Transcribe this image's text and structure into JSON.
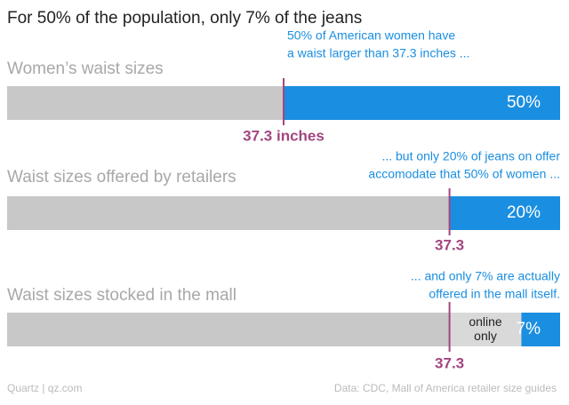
{
  "chart_data": {
    "type": "stacked-hbar",
    "title": "For 50% of the population, only 7% of the jeans",
    "xlim": [
      0,
      100
    ],
    "bars": [
      {
        "label": "Women’s waist sizes",
        "values": [
          50,
          50
        ],
        "colors": [
          "#c8c8c8",
          "#1a8ee0"
        ],
        "value_labels": [
          null,
          "50%"
        ],
        "segment_names": [
          null,
          null
        ],
        "annotation": [
          "50% of American women have",
          "a waist larger than 37.3 inches ..."
        ],
        "marker_label": "37.3 inches"
      },
      {
        "label": "Waist sizes offered by retailers",
        "values": [
          80,
          20
        ],
        "colors": [
          "#c8c8c8",
          "#1a8ee0"
        ],
        "value_labels": [
          null,
          "20%"
        ],
        "segment_names": [
          null,
          null
        ],
        "annotation": [
          "... but only 20% of jeans on offer",
          "accomodate that 50% of women ..."
        ],
        "marker_label": "37.3"
      },
      {
        "label": "Waist sizes stocked in the mall",
        "values": [
          80,
          13,
          7
        ],
        "colors": [
          "#c8c8c8",
          "#d9d9d9",
          "#1a8ee0"
        ],
        "value_labels": [
          null,
          null,
          "7%"
        ],
        "segment_names": [
          null,
          "online only",
          null
        ],
        "annotation": [
          "... and only 7% are actually",
          "offered in the mall itself."
        ],
        "marker_label": "37.3"
      }
    ],
    "marker_color": "#a3467f",
    "source_left": "Quartz | qz.com",
    "source_right": "Data: CDC, Mall of America retailer size guides"
  }
}
